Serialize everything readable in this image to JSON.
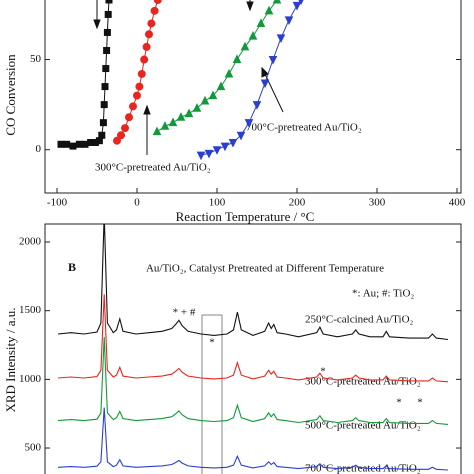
{
  "chart_data": [
    {
      "type": "line",
      "ylabel": "CO Conversion",
      "xlabel": "Reaction Temperature / °C",
      "xlim": [
        -115,
        405
      ],
      "ylim": [
        -24,
        83
      ],
      "xticks": [
        -100,
        0,
        100,
        200,
        300,
        400
      ],
      "yticks": [
        0,
        50
      ],
      "annotations": [
        "300°C-pretreated Au/TiO₂",
        "700°C-pretreated Au/TiO₂"
      ],
      "series": [
        {
          "color": "#111111",
          "marker": "square",
          "x": [
            -95,
            -88,
            -80,
            -72,
            -65,
            -58,
            -52,
            -47,
            -44,
            -42,
            -41,
            -40,
            -39,
            -38,
            -37,
            -36,
            -35
          ],
          "values": [
            3,
            3,
            2,
            3,
            3,
            4,
            4,
            5,
            8,
            15,
            25,
            35,
            45,
            55,
            65,
            75,
            83
          ]
        },
        {
          "color": "#e8261f",
          "marker": "circle",
          "x": [
            -25,
            -20,
            -15,
            -10,
            -5,
            0,
            3,
            6,
            9,
            12,
            15,
            18,
            22,
            26
          ],
          "values": [
            5,
            8,
            12,
            18,
            24,
            30,
            35,
            42,
            50,
            57,
            64,
            70,
            77,
            83
          ]
        },
        {
          "color": "#109a3a",
          "marker": "triangle",
          "x": [
            25,
            35,
            45,
            55,
            65,
            75,
            85,
            95,
            105,
            115,
            125,
            135,
            145,
            155,
            165,
            175
          ],
          "values": [
            10,
            13,
            15,
            18,
            20,
            23,
            27,
            30,
            35,
            42,
            50,
            57,
            63,
            70,
            77,
            83
          ]
        },
        {
          "color": "#2a3fd0",
          "marker": "down-triangle",
          "x": [
            80,
            90,
            100,
            110,
            120,
            130,
            140,
            150,
            160,
            170,
            180,
            190,
            200,
            205
          ],
          "values": [
            -3,
            -2,
            0,
            2,
            4,
            8,
            15,
            25,
            37,
            50,
            62,
            72,
            80,
            83
          ]
        }
      ]
    },
    {
      "type": "line",
      "panel": "B",
      "title": "Au/TiO₂, Catalyst Pretreated at Different Temperature",
      "legend_note": "*: Au; #: TiO₂",
      "ylabel": "XRD Intensity / a.u.",
      "xlim": [
        18,
        82
      ],
      "ylim": [
        300,
        2150
      ],
      "yticks": [
        500,
        1000,
        1500,
        2000
      ],
      "peak_markers": [
        "* + #",
        "*",
        "*",
        "*",
        "*"
      ],
      "x": [
        20,
        22,
        24,
        26,
        26.6,
        27.1,
        27.6,
        28.5,
        29,
        29.5,
        30,
        32,
        34,
        36,
        37.5,
        38.1,
        38.6,
        39.1,
        40,
        42,
        44,
        46,
        47,
        47.6,
        48.2,
        50,
        51.8,
        52.4,
        52.8,
        53.2,
        53.7,
        55,
        57,
        59.8,
        60.3,
        60.8,
        63,
        65.3,
        65.8,
        66.3,
        68,
        70,
        70.5,
        71,
        74,
        77,
        77.6,
        78.2,
        80
      ],
      "series": [
        {
          "name": "250°C-calcined Au/TiO₂",
          "color": "#111111",
          "values": [
            1330,
            1340,
            1330,
            1345,
            1410,
            2200,
            1410,
            1340,
            1360,
            1440,
            1350,
            1330,
            1340,
            1350,
            1370,
            1400,
            1430,
            1390,
            1350,
            1330,
            1320,
            1330,
            1360,
            1490,
            1360,
            1320,
            1350,
            1410,
            1370,
            1400,
            1340,
            1330,
            1310,
            1340,
            1380,
            1330,
            1310,
            1330,
            1360,
            1330,
            1310,
            1310,
            1350,
            1310,
            1300,
            1300,
            1330,
            1300,
            1290
          ]
        },
        {
          "name": "300°C-pretreated Au/TiO₂",
          "color": "#e8261f",
          "values": [
            1010,
            1017,
            1010,
            1020,
            1066,
            1619,
            1066,
            1017,
            1031,
            1087,
            1024,
            1010,
            1017,
            1024,
            1038,
            1059,
            1080,
            1052,
            1024,
            1010,
            1003,
            1010,
            1031,
            1122,
            1031,
            1003,
            1024,
            1066,
            1038,
            1059,
            1017,
            1010,
            996,
            1017,
            1045,
            1010,
            996,
            1010,
            1031,
            1010,
            996,
            996,
            1024,
            996,
            989,
            989,
            1010,
            989,
            982
          ]
        },
        {
          "name": "500°C-pretreated Au/TiO₂",
          "color": "#109a3a",
          "values": [
            700,
            707,
            700,
            710,
            756,
            1309,
            756,
            707,
            721,
            767,
            714,
            700,
            707,
            714,
            728,
            749,
            770,
            742,
            714,
            700,
            693,
            700,
            721,
            812,
            721,
            693,
            714,
            756,
            728,
            749,
            707,
            700,
            686,
            707,
            735,
            700,
            686,
            700,
            721,
            700,
            686,
            686,
            714,
            686,
            679,
            679,
            700,
            679,
            672
          ]
        },
        {
          "name": "700°C-pretreated Au/TiO₂",
          "color": "#2a3fd0",
          "values": [
            360,
            365,
            360,
            368,
            400,
            795,
            400,
            365,
            375,
            415,
            370,
            360,
            365,
            370,
            380,
            395,
            410,
            390,
            370,
            360,
            355,
            360,
            375,
            440,
            375,
            355,
            370,
            400,
            380,
            395,
            365,
            360,
            350,
            365,
            385,
            360,
            350,
            360,
            375,
            360,
            350,
            350,
            370,
            350,
            345,
            345,
            360,
            345,
            340
          ]
        }
      ]
    }
  ]
}
